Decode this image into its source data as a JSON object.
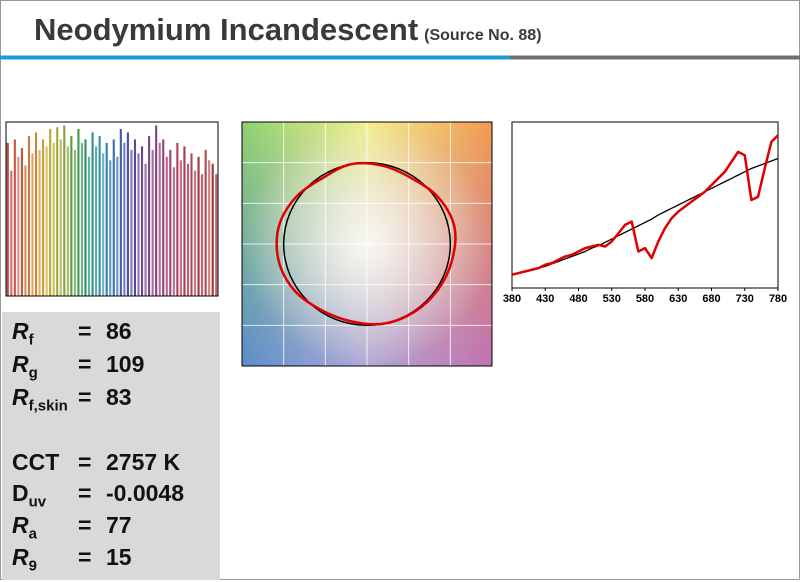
{
  "title": "Neodymium Incandescent",
  "subtitle": "(Source No. 88)",
  "metrics": [
    {
      "label": "R",
      "subscript": "f",
      "italic": true,
      "operator": "=",
      "value": "86"
    },
    {
      "label": "R",
      "subscript": "g",
      "italic": true,
      "operator": "=",
      "value": "109"
    },
    {
      "label": "R",
      "subscript": "f,skin",
      "italic": true,
      "operator": "=",
      "value": "83"
    },
    {
      "label": "CCT",
      "italic": false,
      "operator": "=",
      "value": "2757 K"
    },
    {
      "label": "D",
      "subscript": "uv",
      "italic": false,
      "operator": "=",
      "value": "-0.0048"
    },
    {
      "label": "R",
      "subscript": "a",
      "italic": true,
      "operator": "=",
      "value": "77"
    },
    {
      "label": "R",
      "subscript": "9",
      "italic": true,
      "operator": "=",
      "value": "15"
    }
  ],
  "chart_data": [
    {
      "type": "bar",
      "ylim": [
        0,
        100
      ],
      "values": [
        88,
        72,
        90,
        80,
        85,
        75,
        92,
        82,
        94,
        84,
        90,
        86,
        96,
        88,
        97,
        90,
        98,
        86,
        92,
        84,
        96,
        88,
        90,
        80,
        94,
        86,
        92,
        82,
        88,
        78,
        90,
        80,
        96,
        88,
        94,
        84,
        90,
        82,
        86,
        76,
        92,
        84,
        98,
        88,
        90,
        80,
        84,
        74,
        88,
        78,
        86,
        76,
        82,
        72,
        80,
        70,
        84,
        78,
        76,
        70
      ],
      "colors": [
        "#b8433f",
        "#d0706a",
        "#c8564a",
        "#e09080",
        "#b85a3a",
        "#d9895a",
        "#c87a40",
        "#e0a070",
        "#c88a30",
        "#e0b060",
        "#c8a030",
        "#d8c070",
        "#b8a828",
        "#c8c060",
        "#a0a830",
        "#b8c070",
        "#8aa040",
        "#a0c070",
        "#609a40",
        "#88b878",
        "#409a50",
        "#70b880",
        "#30906a",
        "#60b0a0",
        "#2a908a",
        "#60a8b0",
        "#3090a8",
        "#70b0c8",
        "#3080b0",
        "#6098c8",
        "#3a70b0",
        "#7090c8",
        "#405ea8",
        "#7080c0",
        "#4a50a0",
        "#8078b8",
        "#5a4898",
        "#8a70b0",
        "#6a4890",
        "#9a70a8",
        "#7a4888",
        "#a070a0",
        "#8a4080",
        "#b070a0",
        "#9a4078",
        "#b86090",
        "#a84070",
        "#c07090",
        "#b04060",
        "#c86a80",
        "#a83a58",
        "#c06078",
        "#b04a50",
        "#d07080",
        "#a03a48",
        "#c06070",
        "#b04a4a",
        "#d08080",
        "#983838",
        "#c06060"
      ]
    },
    {
      "type": "vector",
      "xlim": [
        -1.5,
        1.5
      ],
      "ylim": [
        -1.5,
        1.5
      ],
      "xticks": [
        -1,
        -0.5,
        0,
        0.5,
        1
      ],
      "yticks": [
        -1,
        -0.5,
        0,
        0.5,
        1
      ],
      "test": {
        "color": "#e00000",
        "values": [
          1.07,
          1.03,
          0.97,
          0.98,
          1.0,
          0.97,
          1.03,
          1.08,
          1.08,
          1.04,
          0.98,
          0.97,
          1.0,
          1.01,
          1.02,
          1.04
        ]
      },
      "reference": {
        "color": "#000000",
        "values": [
          1,
          1,
          1,
          1,
          1,
          1,
          1,
          1,
          1,
          1,
          1,
          1,
          1,
          1,
          1,
          1
        ]
      }
    },
    {
      "type": "line",
      "xlim": [
        380,
        780
      ],
      "ylim": [
        0,
        1
      ],
      "xticks": [
        380,
        430,
        480,
        530,
        580,
        630,
        680,
        730,
        780
      ],
      "x": [
        380,
        390,
        400,
        410,
        420,
        430,
        440,
        450,
        460,
        470,
        480,
        490,
        500,
        510,
        520,
        530,
        540,
        550,
        560,
        570,
        580,
        590,
        600,
        610,
        620,
        630,
        640,
        650,
        660,
        670,
        680,
        690,
        700,
        710,
        720,
        730,
        740,
        750,
        760,
        770,
        780
      ],
      "series": [
        {
          "color": "#000000",
          "width": 1.3,
          "values": [
            0.08,
            0.09,
            0.1,
            0.11,
            0.12,
            0.13,
            0.145,
            0.16,
            0.175,
            0.19,
            0.205,
            0.22,
            0.24,
            0.255,
            0.275,
            0.295,
            0.315,
            0.335,
            0.355,
            0.375,
            0.395,
            0.415,
            0.44,
            0.46,
            0.48,
            0.5,
            0.52,
            0.54,
            0.56,
            0.58,
            0.6,
            0.62,
            0.64,
            0.66,
            0.68,
            0.7,
            0.72,
            0.735,
            0.75,
            0.765,
            0.78
          ]
        },
        {
          "color": "#e00000",
          "width": 2.5,
          "values": [
            0.08,
            0.09,
            0.1,
            0.11,
            0.12,
            0.14,
            0.15,
            0.17,
            0.19,
            0.2,
            0.22,
            0.24,
            0.25,
            0.26,
            0.25,
            0.28,
            0.33,
            0.38,
            0.4,
            0.22,
            0.24,
            0.18,
            0.28,
            0.36,
            0.42,
            0.46,
            0.49,
            0.52,
            0.55,
            0.58,
            0.62,
            0.66,
            0.7,
            0.76,
            0.82,
            0.8,
            0.53,
            0.55,
            0.72,
            0.88,
            0.92
          ]
        }
      ]
    }
  ]
}
